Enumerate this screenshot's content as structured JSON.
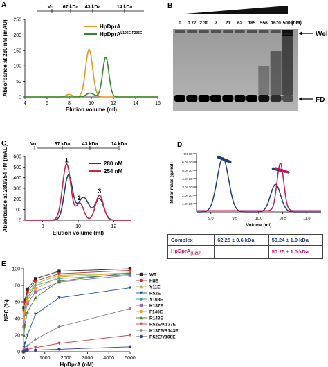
{
  "panels": {
    "A": {
      "label": "A",
      "ylabel": "Absorbance at 280 nM (mAU)",
      "xlabel": "Elution volume (ml)",
      "markers": [
        "Vo",
        "67 kDa",
        "43 kDa",
        "14 kDa"
      ],
      "legend": [
        {
          "name": "HpDprA",
          "sup": "",
          "color": "#e8961e"
        },
        {
          "name": "HpDprA",
          "sup": "L196E-F205E",
          "color": "#2e8b2e"
        }
      ]
    },
    "B": {
      "label": "B",
      "concentrations": [
        "0",
        "0.77",
        "2.30",
        "7",
        "21",
        "62",
        "185",
        "556",
        "1670",
        "5000"
      ],
      "unit": "(nM)",
      "well_label": "Well",
      "fd_label": "FD"
    },
    "C": {
      "label": "C",
      "ylabel": "Absorbance at 280/254 nM (mAU)",
      "xlabel": "Elution volume (ml)",
      "markers": [
        "Vo",
        "67 kDa",
        "43 kDa",
        "14 kDa"
      ],
      "legend": [
        {
          "name": "280 nM",
          "color": "#1f3d7a"
        },
        {
          "name": "254 nM",
          "color": "#d4213d"
        }
      ],
      "peak_labels": [
        "1",
        "2",
        "3"
      ]
    },
    "D": {
      "label": "D",
      "ylabel": "Molar mass (g/mol)",
      "xlabel": "Volume (ml)",
      "table": [
        {
          "name": "Complex",
          "sub": "",
          "col1": "62.25 ± 0.6 kDa",
          "col2": "50.24 ± 1.0 kDa",
          "color": "#1f3d7a"
        },
        {
          "name": "HpDprA",
          "sub": "(1-217)",
          "col1": "",
          "col2": "50.25 ± 1.0 kDa",
          "color": "#c2185b"
        }
      ]
    },
    "E": {
      "label": "E",
      "ylabel": "NPC (%)",
      "xlabel": "HpDprA (nM)"
    }
  },
  "chart_data": [
    {
      "type": "line",
      "panel": "A",
      "xlabel": "Elution volume (ml)",
      "ylabel": "Absorbance at 280 nM (mAU)",
      "xlim": [
        4,
        16
      ],
      "ylim": [
        0,
        250
      ],
      "xticks": [
        4,
        6,
        8,
        10,
        12,
        14,
        16
      ],
      "yticks": [
        0,
        50,
        100,
        150,
        200,
        250
      ],
      "series": [
        {
          "name": "HpDprA",
          "color": "#e8961e",
          "peaks": [
            {
              "x": 9.8,
              "y": 153,
              "w": 0.45
            },
            {
              "x": 8.0,
              "y": 8,
              "w": 0.4
            }
          ]
        },
        {
          "name": "HpDprA L196E-F205E",
          "color": "#2e8b2e",
          "peaks": [
            {
              "x": 11.3,
              "y": 128,
              "w": 0.4
            },
            {
              "x": 9.9,
              "y": 12,
              "w": 0.5
            }
          ]
        }
      ]
    },
    {
      "type": "line",
      "panel": "C",
      "xlabel": "Elution volume (ml)",
      "ylabel": "Absorbance at 280/254 nM (mAU)",
      "xlim": [
        7,
        13
      ],
      "ylim": [
        0,
        600
      ],
      "xticks": [
        8,
        10,
        12
      ],
      "yticks": [
        0,
        100,
        200,
        300,
        400,
        500,
        600
      ],
      "series": [
        {
          "name": "280 nM",
          "color": "#1f3d7a",
          "peaks": [
            {
              "x": 9.45,
              "y": 420,
              "w": 0.33
            },
            {
              "x": 10.3,
              "y": 215,
              "w": 0.45
            },
            {
              "x": 11.2,
              "y": 200,
              "w": 0.35
            }
          ]
        },
        {
          "name": "254 nM",
          "color": "#d4213d",
          "peaks": [
            {
              "x": 9.35,
              "y": 530,
              "w": 0.33
            },
            {
              "x": 10.1,
              "y": 160,
              "w": 0.3
            },
            {
              "x": 11.2,
              "y": 235,
              "w": 0.32
            }
          ]
        }
      ]
    },
    {
      "type": "line",
      "panel": "D",
      "xlabel": "Volume (ml)",
      "ylabel": "Molar mass (g/mol)",
      "xlim": [
        8.7,
        11.3
      ],
      "ylim": [
        0,
        70000
      ],
      "xticks": [
        9.0,
        9.5,
        10.0,
        10.5,
        11.0
      ],
      "yticks": [
        "1.0×10⁴",
        "2.0×10⁴",
        "3.0×10⁴",
        "4.0×10⁴",
        "5.0×10⁴",
        "6.0×10⁴",
        "7X 10⁴"
      ],
      "series": [
        {
          "name": "Complex",
          "color": "#1f3d7a",
          "peaks": [
            {
              "x": 9.25,
              "y": 65000,
              "w": 0.17
            },
            {
              "x": 10.35,
              "y": 33000,
              "w": 0.15
            }
          ]
        },
        {
          "name": "HpDprA(1-217)",
          "color": "#c2185b",
          "peaks": [
            {
              "x": 10.45,
              "y": 57000,
              "w": 0.1
            }
          ]
        }
      ]
    },
    {
      "type": "line",
      "panel": "E",
      "xlabel": "HpDprA (nM)",
      "ylabel": "NPC (%)",
      "xlim": [
        0,
        5000
      ],
      "ylim": [
        0,
        100
      ],
      "xticks": [
        0,
        1000,
        2000,
        3000,
        4000,
        5000
      ],
      "yticks": [
        0,
        20,
        40,
        60,
        80,
        100
      ],
      "x": [
        0,
        21,
        62,
        185,
        556,
        1670,
        5000
      ],
      "series": [
        {
          "name": "WT",
          "color": "#222222",
          "values": [
            0,
            53,
            62,
            75,
            88,
            97,
            100
          ]
        },
        {
          "name": "H8E",
          "color": "#d62728",
          "values": [
            0,
            50,
            60,
            72,
            85,
            94,
            98
          ]
        },
        {
          "name": "Y11E",
          "color": "#8fbc3f",
          "values": [
            0,
            45,
            55,
            68,
            82,
            92,
            95
          ]
        },
        {
          "name": "R52E",
          "color": "#1f4fa0",
          "values": [
            0,
            5,
            10,
            20,
            45,
            65,
            77
          ]
        },
        {
          "name": "Y108E",
          "color": "#2aa198",
          "values": [
            0,
            40,
            52,
            65,
            80,
            88,
            93
          ]
        },
        {
          "name": "K137E",
          "color": "#9467bd",
          "values": [
            0,
            30,
            45,
            58,
            72,
            84,
            92
          ]
        },
        {
          "name": "F140E",
          "color": "#f59a23",
          "values": [
            0,
            40,
            50,
            62,
            76,
            90,
            95
          ]
        },
        {
          "name": "R143E",
          "color": "#4a7a2a",
          "values": [
            0,
            20,
            33,
            48,
            65,
            85,
            95
          ]
        },
        {
          "name": "R52E/K137E",
          "color": "#c7495c",
          "values": [
            0,
            2,
            2,
            3,
            5,
            10,
            20
          ]
        },
        {
          "name": "K137E/R143E",
          "color": "#7f7f7f",
          "values": [
            0,
            3,
            4,
            7,
            15,
            30,
            52
          ]
        },
        {
          "name": "R52E/Y108E",
          "color": "#3b3b8f",
          "values": [
            0,
            1,
            1,
            2,
            2,
            3,
            6
          ]
        }
      ]
    }
  ]
}
